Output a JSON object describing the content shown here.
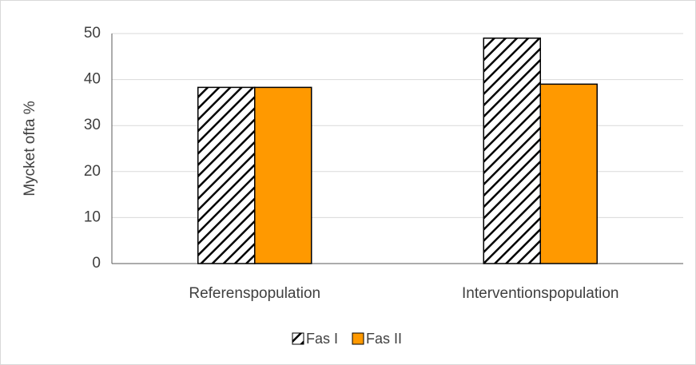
{
  "chart_data": {
    "type": "bar",
    "y_label": "Mycket ofta %",
    "categories": [
      "Referenspopulation",
      "Interventionspopulation"
    ],
    "series": [
      {
        "name": "Fas I",
        "color": "#000000",
        "pattern": "hatch",
        "values": [
          38.3,
          49
        ]
      },
      {
        "name": "Fas II",
        "color": "#ff9900",
        "values": [
          38.3,
          39
        ]
      }
    ],
    "ylim": [
      0,
      50
    ],
    "yticks": [
      0,
      10,
      20,
      30,
      40,
      50
    ],
    "grid": true,
    "legend": "bottom"
  }
}
